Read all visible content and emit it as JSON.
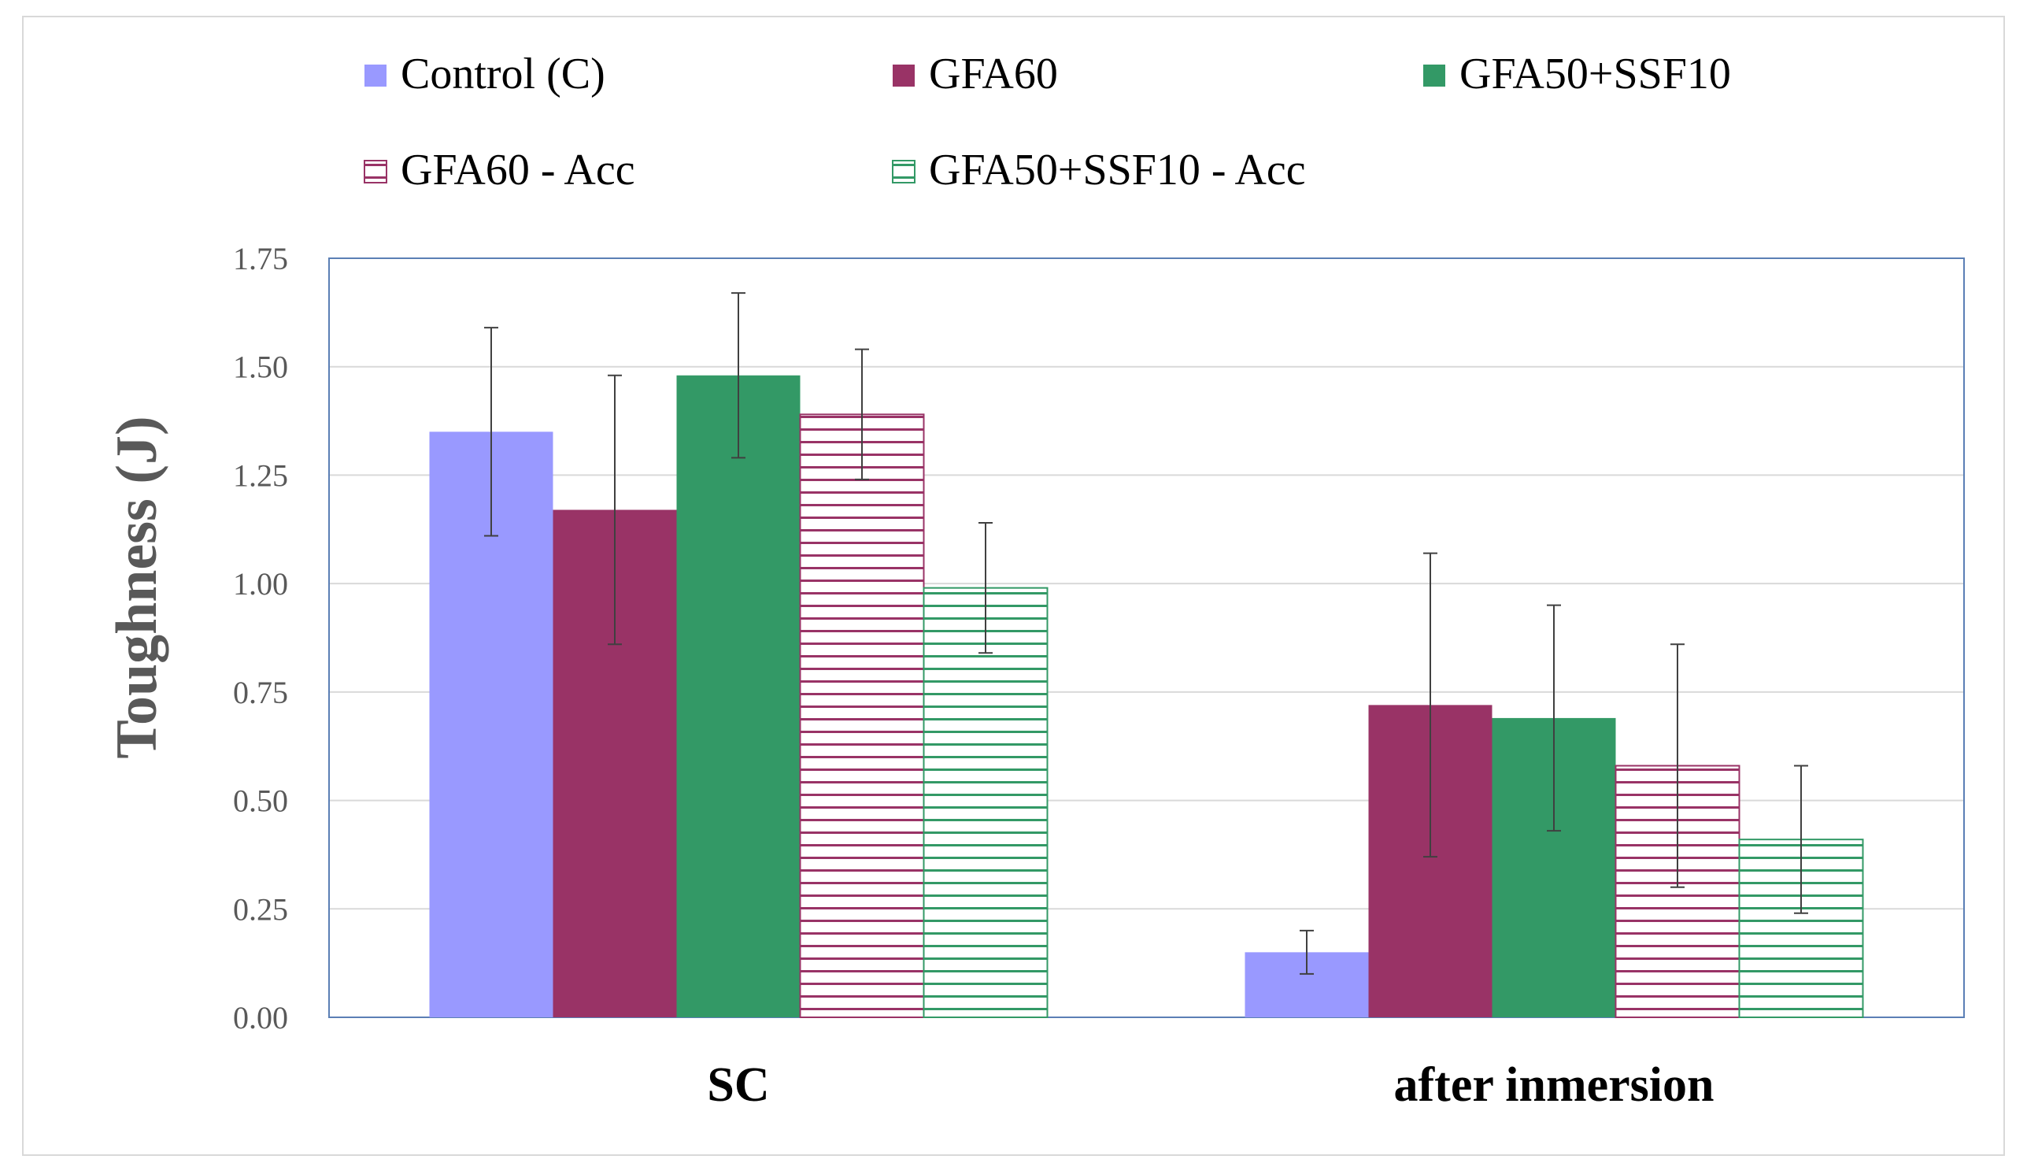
{
  "chart_data": {
    "type": "bar",
    "title": "",
    "xlabel": "",
    "ylabel": "Toughness (J)",
    "ylim": [
      0,
      1.75
    ],
    "yticks": [
      "0.00",
      "0.25",
      "0.50",
      "0.75",
      "1.00",
      "1.25",
      "1.50",
      "1.75"
    ],
    "grid": true,
    "legend_position": "top",
    "categories": [
      "SC",
      "after inmersion"
    ],
    "series": [
      {
        "name": "Control (C)",
        "color": "#9999ff",
        "pattern": "solid",
        "values": [
          1.35,
          0.15
        ],
        "errors": [
          0.24,
          0.05
        ]
      },
      {
        "name": "GFA60",
        "color": "#993366",
        "pattern": "solid",
        "values": [
          1.17,
          0.72
        ],
        "errors": [
          0.31,
          0.35
        ]
      },
      {
        "name": "GFA50+SSF10",
        "color": "#339966",
        "pattern": "solid",
        "values": [
          1.48,
          0.69
        ],
        "errors": [
          0.19,
          0.26
        ]
      },
      {
        "name": "GFA60 - Acc",
        "color": "#993366",
        "pattern": "horizontal-lines",
        "values": [
          1.39,
          0.58
        ],
        "errors": [
          0.15,
          0.28
        ]
      },
      {
        "name": "GFA50+SSF10 - Acc",
        "color": "#339966",
        "pattern": "horizontal-lines",
        "values": [
          0.99,
          0.41
        ],
        "errors": [
          0.15,
          0.17
        ]
      }
    ]
  }
}
